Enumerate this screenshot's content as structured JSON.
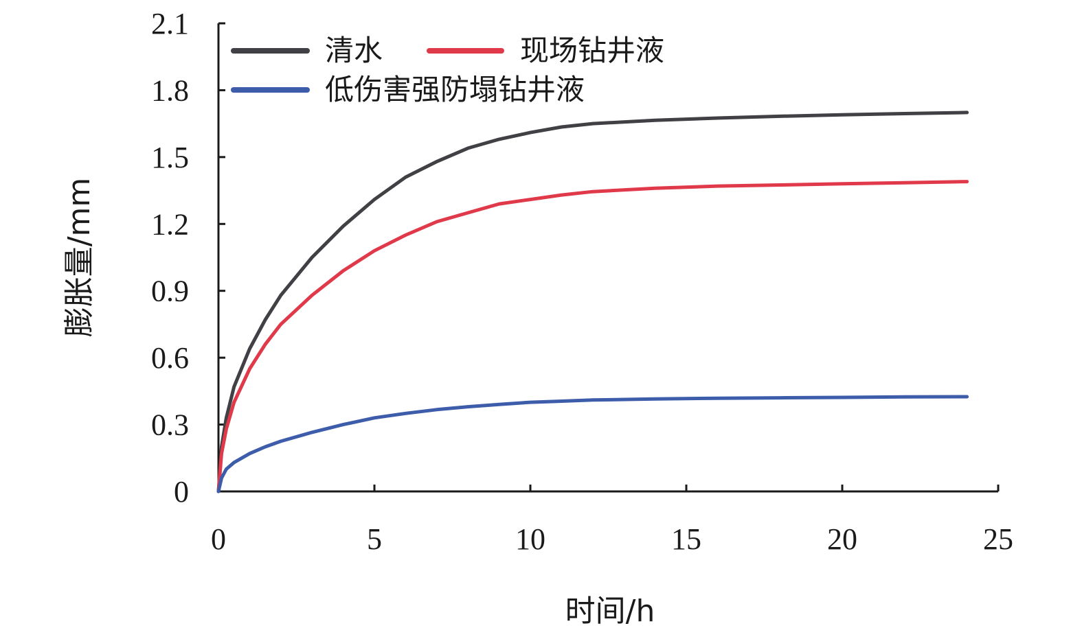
{
  "chart_data": {
    "type": "line",
    "xlabel": "时间/h",
    "ylabel": "膨胀量/mm",
    "xlim": [
      0,
      25
    ],
    "ylim": [
      0,
      2.1
    ],
    "x_ticks": [
      "0",
      "5",
      "10",
      "15",
      "20",
      "25"
    ],
    "y_ticks": [
      "0",
      "0.3",
      "0.6",
      "0.9",
      "1.2",
      "1.5",
      "1.8",
      "2.1"
    ],
    "grid": false,
    "legend_position": "top-left",
    "series": [
      {
        "name": "清水",
        "color": "#404045",
        "x": [
          0,
          0.1,
          0.25,
          0.5,
          1,
          1.5,
          2,
          3,
          4,
          5,
          6,
          7,
          8,
          9,
          10,
          11,
          12,
          14,
          16,
          18,
          20,
          22,
          24
        ],
        "y": [
          0,
          0.2,
          0.33,
          0.47,
          0.64,
          0.77,
          0.88,
          1.05,
          1.19,
          1.31,
          1.41,
          1.48,
          1.54,
          1.58,
          1.61,
          1.635,
          1.65,
          1.665,
          1.675,
          1.683,
          1.69,
          1.695,
          1.7
        ]
      },
      {
        "name": "现场钻井液",
        "color": "#e0394a",
        "x": [
          0,
          0.1,
          0.25,
          0.5,
          1,
          1.5,
          2,
          3,
          4,
          5,
          6,
          7,
          8,
          9,
          10,
          11,
          12,
          14,
          16,
          18,
          20,
          22,
          24
        ],
        "y": [
          0,
          0.17,
          0.28,
          0.4,
          0.55,
          0.66,
          0.75,
          0.88,
          0.99,
          1.08,
          1.15,
          1.21,
          1.25,
          1.29,
          1.31,
          1.33,
          1.345,
          1.36,
          1.37,
          1.375,
          1.38,
          1.385,
          1.39
        ]
      },
      {
        "name": "低伤害强防塌钻井液",
        "color": "#3d5dab",
        "x": [
          0,
          0.1,
          0.25,
          0.5,
          1,
          1.5,
          2,
          3,
          4,
          5,
          6,
          7,
          8,
          9,
          10,
          11,
          12,
          14,
          16,
          18,
          20,
          22,
          24
        ],
        "y": [
          0,
          0.06,
          0.1,
          0.13,
          0.17,
          0.2,
          0.225,
          0.265,
          0.3,
          0.33,
          0.35,
          0.367,
          0.38,
          0.39,
          0.4,
          0.405,
          0.41,
          0.415,
          0.418,
          0.42,
          0.422,
          0.424,
          0.425
        ]
      }
    ]
  }
}
